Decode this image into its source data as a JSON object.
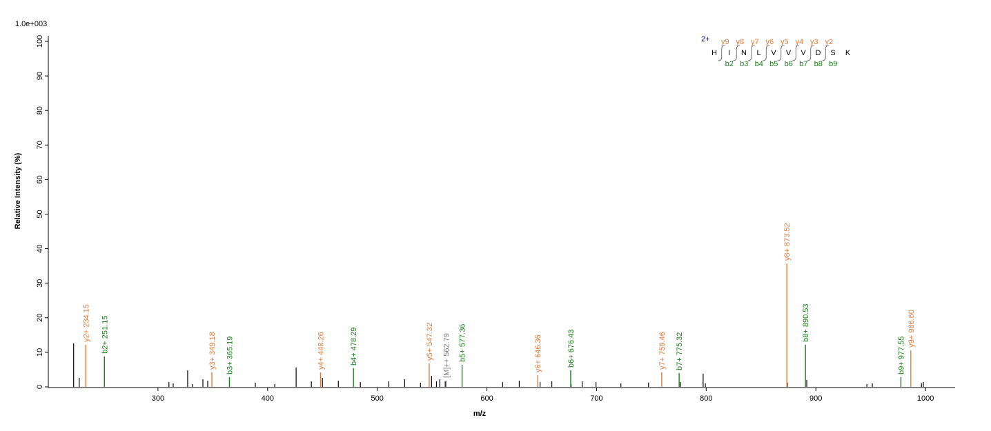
{
  "chart_data": {
    "type": "spectrum",
    "scale_label": "1.0e+003",
    "xlabel": "m/z",
    "ylabel": "Relative   Intensity (%)",
    "xlim": [
      200,
      1027
    ],
    "ylim": [
      0,
      100
    ],
    "xticks": [
      300,
      400,
      500,
      600,
      700,
      800,
      900,
      1000
    ],
    "yticks": [
      0,
      10,
      20,
      30,
      40,
      50,
      60,
      70,
      80,
      90,
      100
    ],
    "peaks": {
      "color": "#000000",
      "x": [
        223.1,
        228.2,
        310,
        313.9,
        327.1,
        331.5,
        341,
        345.4,
        388.8,
        406.5,
        426,
        439.9,
        450,
        464.5,
        484.6,
        510.5,
        525,
        539.4,
        549.5,
        554,
        557,
        562,
        614.4,
        629.5,
        648.5,
        659.2,
        676.8,
        686.9,
        699.5,
        722.2,
        747.4,
        776.4,
        797.2,
        799.2,
        874,
        891.7,
        946.5,
        951.5,
        996.3,
        998
      ],
      "values": [
        12.6,
        2.6,
        1.4,
        1,
        4.8,
        0.8,
        2.2,
        1.8,
        1.2,
        0.8,
        5.6,
        1.6,
        2.6,
        1.8,
        1.4,
        1.6,
        2.2,
        1.2,
        3.2,
        1.6,
        2.2,
        1.6,
        1.4,
        1.8,
        1.4,
        1.6,
        0.8,
        1.6,
        1.4,
        1,
        1.2,
        1.4,
        3.8,
        1,
        1.2,
        2,
        0.8,
        1,
        1,
        1.4
      ]
    },
    "annotated": [
      {
        "label": "y2+ 234.15",
        "x": 234.15,
        "value": 12.2,
        "color": "#e07b39"
      },
      {
        "label": "b2+ 251.15",
        "x": 251.15,
        "value": 8.8,
        "color": "#1a7f1a"
      },
      {
        "label": "y3+ 349.18",
        "x": 349.18,
        "value": 4.2,
        "color": "#e07b39"
      },
      {
        "label": "b3+ 365.19",
        "x": 365.19,
        "value": 2.8,
        "color": "#1a7f1a"
      },
      {
        "label": "y4+ 448.26",
        "x": 448.26,
        "value": 4.2,
        "color": "#e07b39"
      },
      {
        "label": "b4+ 478.29",
        "x": 478.29,
        "value": 5.4,
        "color": "#1a7f1a"
      },
      {
        "label": "y5+ 547.32",
        "x": 547.32,
        "value": 6.8,
        "color": "#e07b39"
      },
      {
        "label": "[M]++ 562.79",
        "x": 562.79,
        "value": 1.8,
        "color": "#808080"
      },
      {
        "label": "b5+ 577.36",
        "x": 577.36,
        "value": 6.4,
        "color": "#1a7f1a"
      },
      {
        "label": "y6+ 646.36",
        "x": 646.36,
        "value": 3.4,
        "color": "#e07b39"
      },
      {
        "label": "b6+ 676.43",
        "x": 676.43,
        "value": 4.8,
        "color": "#1a7f1a"
      },
      {
        "label": "y7+ 759.46",
        "x": 759.46,
        "value": 4.2,
        "color": "#e07b39"
      },
      {
        "label": "b7+ 775.32",
        "x": 775.32,
        "value": 4,
        "color": "#1a7f1a"
      },
      {
        "label": "y8+ 873.52",
        "x": 873.52,
        "value": 35.7,
        "color": "#e07b39"
      },
      {
        "label": "b8+ 890.53",
        "x": 890.53,
        "value": 12.2,
        "color": "#1a7f1a"
      },
      {
        "label": "b9+ 977.55",
        "x": 977.55,
        "value": 2.8,
        "color": "#1a7f1a"
      },
      {
        "label": "y9+ 986.60",
        "x": 986.6,
        "value": 10.6,
        "color": "#e07b39"
      }
    ],
    "sequence": {
      "charge": "2+",
      "residues": [
        "H",
        "I",
        "N",
        "L",
        "V",
        "V",
        "V",
        "D",
        "S",
        "K"
      ],
      "y_ions": [
        "y9",
        "y8",
        "y7",
        "y6",
        "y5",
        "y4",
        "y3",
        "y2"
      ],
      "b_ions": [
        "b2",
        "b3",
        "b4",
        "b5",
        "b6",
        "b7",
        "b8",
        "b9"
      ]
    }
  }
}
